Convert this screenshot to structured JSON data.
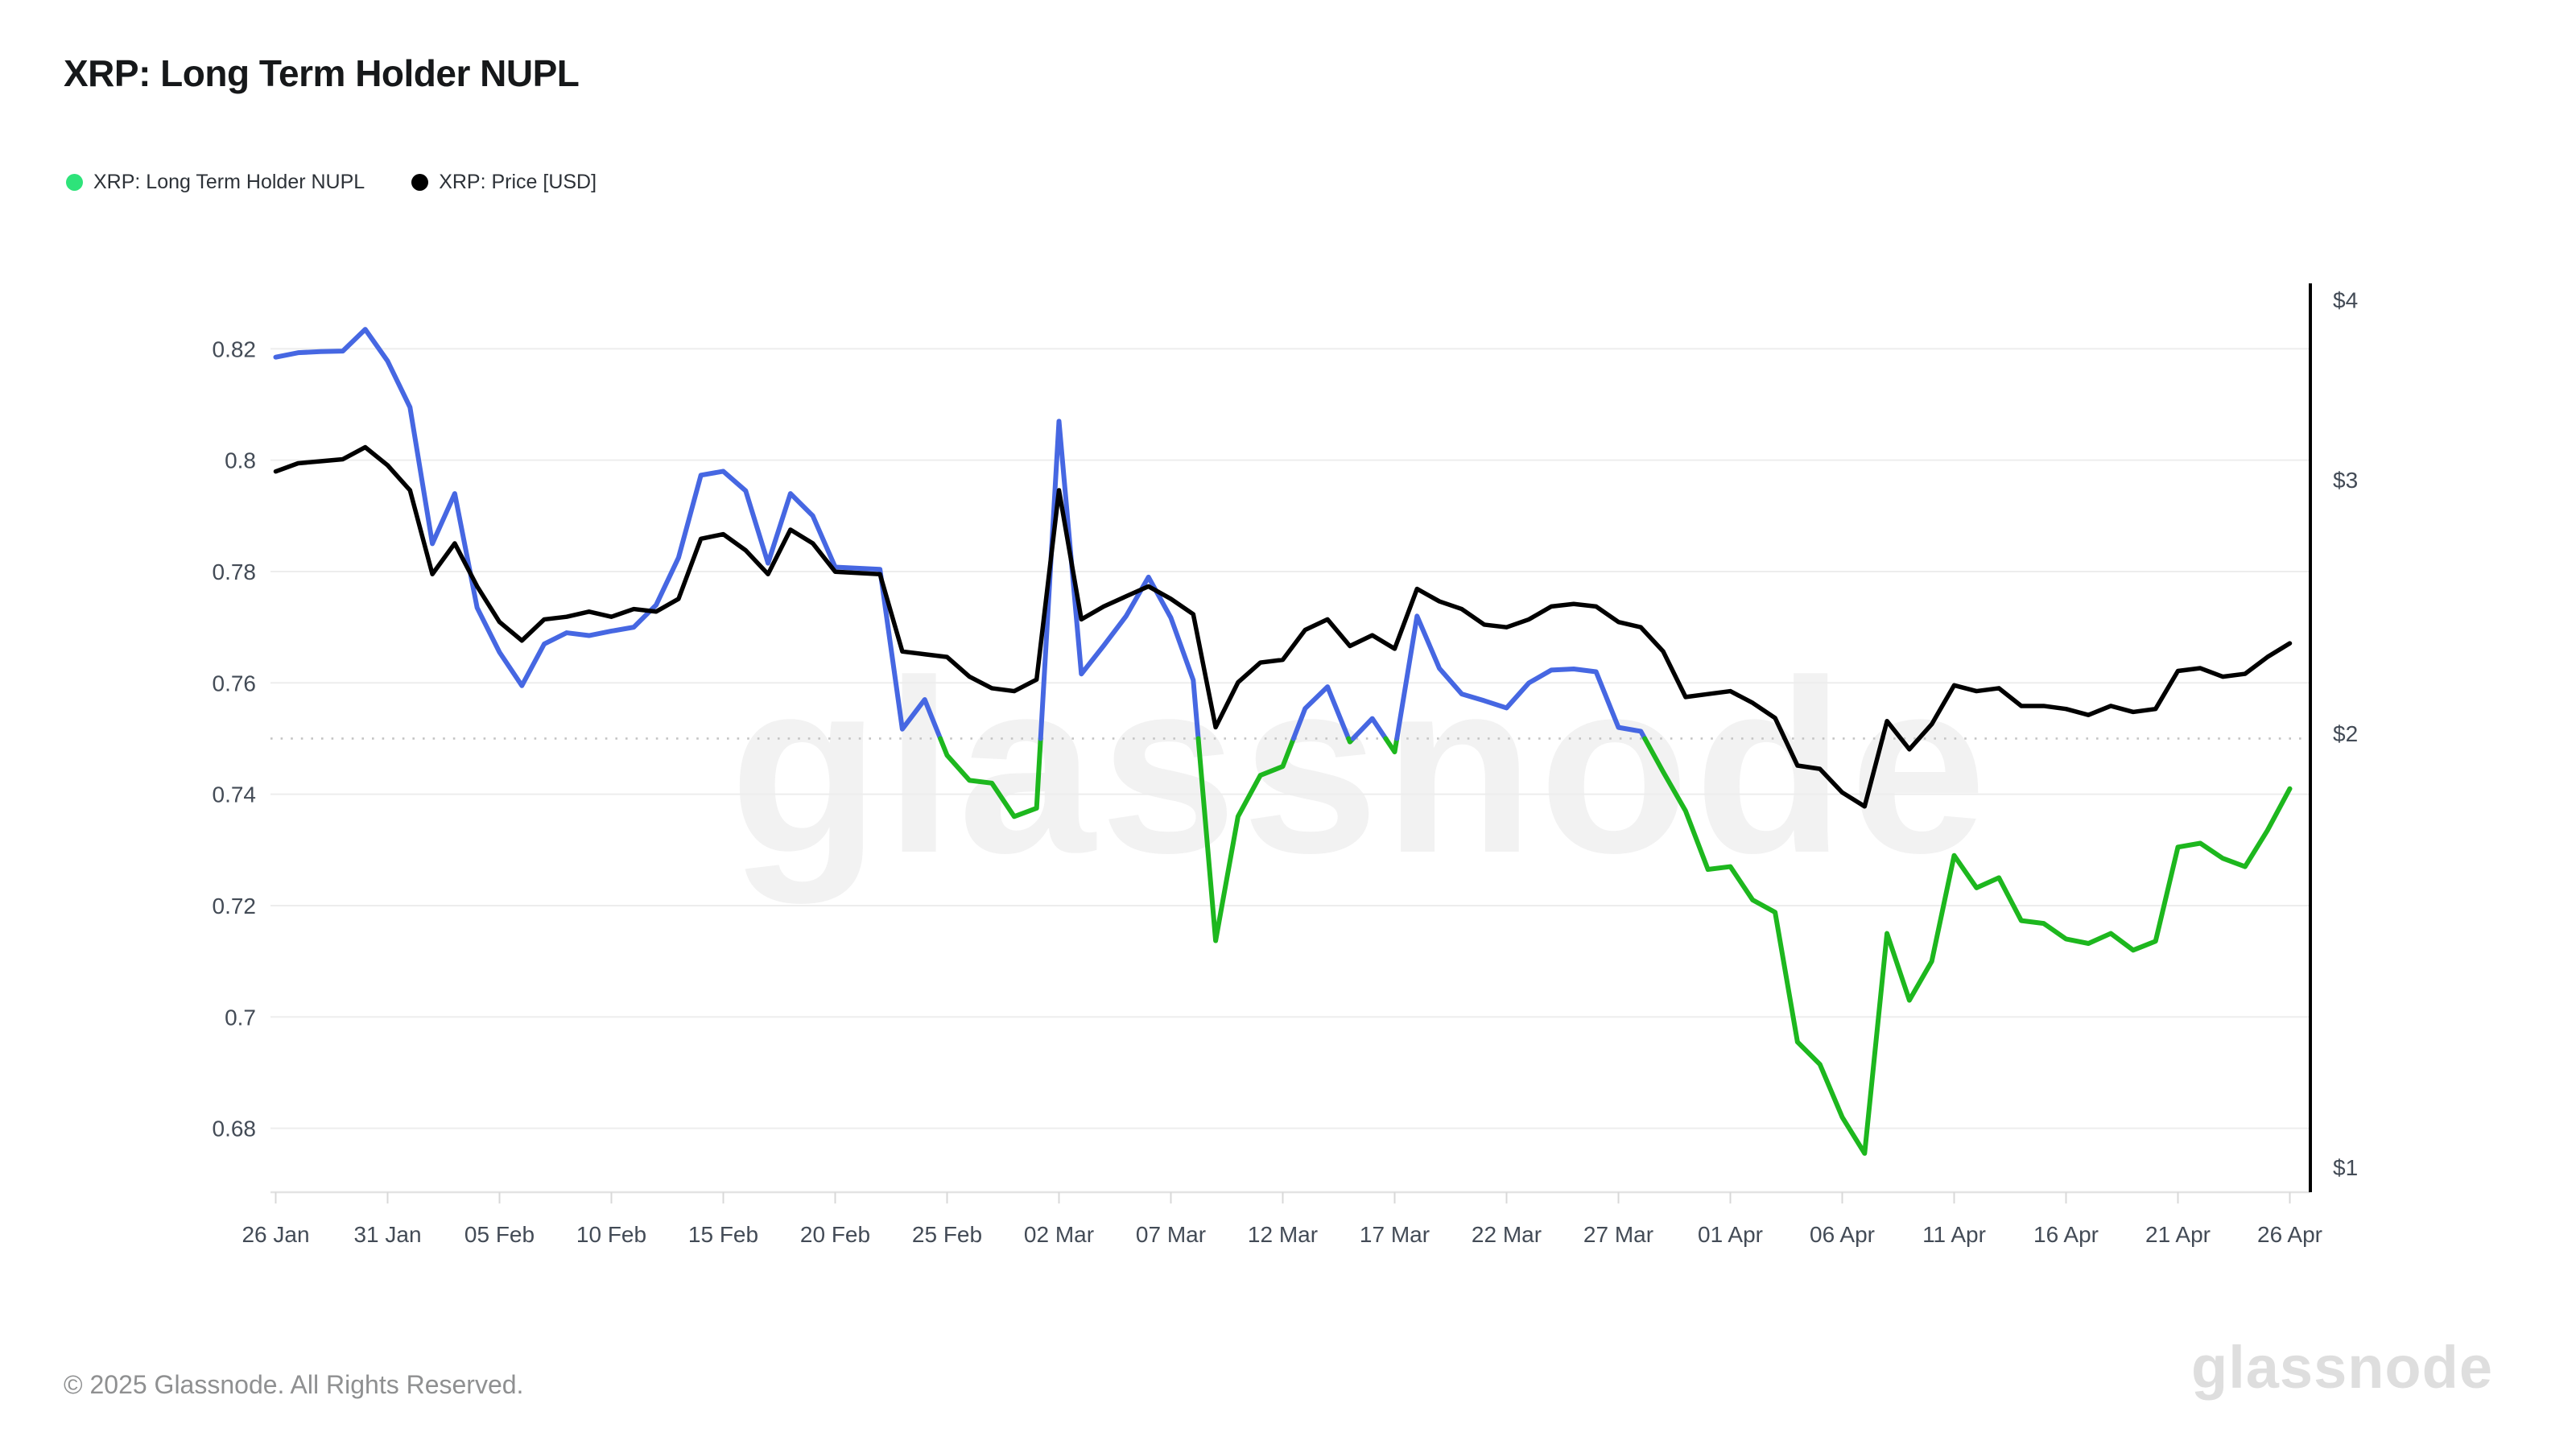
{
  "header": {
    "title": "XRP: Long Term Holder NUPL"
  },
  "legend": {
    "items": [
      {
        "label": "XRP: Long Term Holder NUPL",
        "dot_color": "#2ee37a"
      },
      {
        "label": "XRP: Price [USD]",
        "dot_color": "#000000"
      }
    ]
  },
  "watermark": {
    "text": "glassnode"
  },
  "footer": {
    "copyright": "© 2025 Glassnode. All Rights Reserved.",
    "logo_text": "glassnode"
  },
  "chart_data": {
    "type": "line",
    "title": "XRP: Long Term Holder NUPL",
    "x_tick_labels": [
      "26 Jan",
      "31 Jan",
      "05 Feb",
      "10 Feb",
      "15 Feb",
      "20 Feb",
      "25 Feb",
      "02 Mar",
      "07 Mar",
      "12 Mar",
      "17 Mar",
      "22 Mar",
      "27 Mar",
      "01 Apr",
      "06 Apr",
      "11 Apr",
      "16 Apr",
      "21 Apr",
      "26 Apr"
    ],
    "x_tick_interval_days": 5,
    "dates": [
      "2025-01-26",
      "2025-01-27",
      "2025-01-28",
      "2025-01-29",
      "2025-01-30",
      "2025-01-31",
      "2025-02-01",
      "2025-02-02",
      "2025-02-03",
      "2025-02-04",
      "2025-02-05",
      "2025-02-06",
      "2025-02-07",
      "2025-02-08",
      "2025-02-09",
      "2025-02-10",
      "2025-02-11",
      "2025-02-12",
      "2025-02-13",
      "2025-02-14",
      "2025-02-15",
      "2025-02-16",
      "2025-02-17",
      "2025-02-18",
      "2025-02-19",
      "2025-02-20",
      "2025-02-21",
      "2025-02-22",
      "2025-02-23",
      "2025-02-24",
      "2025-02-25",
      "2025-02-26",
      "2025-02-27",
      "2025-02-28",
      "2025-03-01",
      "2025-03-02",
      "2025-03-03",
      "2025-03-04",
      "2025-03-05",
      "2025-03-06",
      "2025-03-07",
      "2025-03-08",
      "2025-03-09",
      "2025-03-10",
      "2025-03-11",
      "2025-03-12",
      "2025-03-13",
      "2025-03-14",
      "2025-03-15",
      "2025-03-16",
      "2025-03-17",
      "2025-03-18",
      "2025-03-19",
      "2025-03-20",
      "2025-03-21",
      "2025-03-22",
      "2025-03-23",
      "2025-03-24",
      "2025-03-25",
      "2025-03-26",
      "2025-03-27",
      "2025-03-28",
      "2025-03-29",
      "2025-03-30",
      "2025-03-31",
      "2025-04-01",
      "2025-04-02",
      "2025-04-03",
      "2025-04-04",
      "2025-04-05",
      "2025-04-06",
      "2025-04-07",
      "2025-04-08",
      "2025-04-09",
      "2025-04-10",
      "2025-04-11",
      "2025-04-12",
      "2025-04-13",
      "2025-04-14",
      "2025-04-15",
      "2025-04-16",
      "2025-04-17",
      "2025-04-18",
      "2025-04-19",
      "2025-04-20",
      "2025-04-21",
      "2025-04-22",
      "2025-04-23",
      "2025-04-24",
      "2025-04-25",
      "2025-04-26"
    ],
    "series": [
      {
        "name": "XRP: Long Term Holder NUPL",
        "axis": "left",
        "color_rule": "blue when value >= 0.75, green when value < 0.75",
        "values": [
          0.8185,
          0.8193,
          0.8195,
          0.8196,
          0.8235,
          0.8178,
          0.8095,
          0.785,
          0.794,
          0.7735,
          0.7655,
          0.7595,
          0.767,
          0.769,
          0.7685,
          0.7693,
          0.77,
          0.774,
          0.7825,
          0.7973,
          0.798,
          0.7945,
          0.7815,
          0.794,
          0.79,
          0.7808,
          0.7806,
          0.7804,
          0.7517,
          0.757,
          0.747,
          0.7425,
          0.742,
          0.736,
          0.7375,
          0.807,
          0.7616,
          0.7667,
          0.772,
          0.779,
          0.7717,
          0.7605,
          0.7137,
          0.736,
          0.7434,
          0.745,
          0.7554,
          0.7593,
          0.7494,
          0.7536,
          0.7476,
          0.772,
          0.7626,
          0.758,
          0.7568,
          0.7555,
          0.76,
          0.7623,
          0.7625,
          0.762,
          0.752,
          0.7513,
          0.744,
          0.737,
          0.7265,
          0.727,
          0.721,
          0.7188,
          0.6955,
          0.6915,
          0.682,
          0.6755,
          0.715,
          0.703,
          0.71,
          0.729,
          0.7232,
          0.725,
          0.7173,
          0.7168,
          0.714,
          0.7132,
          0.715,
          0.712,
          0.7136,
          0.7305,
          0.7312,
          0.7285,
          0.727,
          0.7335,
          0.741
        ]
      },
      {
        "name": "XRP: Price [USD]",
        "axis": "right",
        "color": "#000000",
        "values": [
          3.04,
          3.08,
          3.09,
          3.1,
          3.16,
          3.07,
          2.95,
          2.58,
          2.71,
          2.53,
          2.39,
          2.32,
          2.4,
          2.41,
          2.43,
          2.41,
          2.44,
          2.43,
          2.48,
          2.73,
          2.75,
          2.68,
          2.58,
          2.77,
          2.71,
          2.59,
          2.585,
          2.58,
          2.28,
          2.27,
          2.26,
          2.19,
          2.15,
          2.14,
          2.18,
          2.95,
          2.4,
          2.45,
          2.49,
          2.53,
          2.48,
          2.42,
          2.02,
          2.17,
          2.24,
          2.25,
          2.36,
          2.4,
          2.3,
          2.34,
          2.29,
          2.52,
          2.47,
          2.44,
          2.38,
          2.37,
          2.4,
          2.45,
          2.46,
          2.45,
          2.39,
          2.37,
          2.28,
          2.12,
          2.13,
          2.14,
          2.1,
          2.05,
          1.9,
          1.89,
          1.82,
          1.78,
          2.04,
          1.95,
          2.03,
          2.16,
          2.14,
          2.15,
          2.09,
          2.09,
          2.08,
          2.06,
          2.09,
          2.07,
          2.08,
          2.21,
          2.22,
          2.19,
          2.2,
          2.26,
          2.31
        ]
      }
    ],
    "y_axis_left": {
      "tick_values": [
        0.82,
        0.8,
        0.78,
        0.76,
        0.74,
        0.72,
        0.7,
        0.68
      ],
      "tick_labels": [
        "0.82",
        "0.8",
        "0.78",
        "0.76",
        "0.74",
        "0.72",
        "0.7",
        "0.68"
      ],
      "grid": true
    },
    "y_axis_right": {
      "tick_values": [
        4,
        3,
        2,
        1
      ],
      "tick_labels": [
        "$4",
        "$3",
        "$2",
        "$1"
      ],
      "scale": "log",
      "grid": false
    },
    "threshold": {
      "value": 0.75,
      "style": "dotted"
    },
    "legend_position": "top-left",
    "colors": {
      "nupl_above_0.75": "#4667e2",
      "nupl_below_0.75": "#1db71e",
      "price": "#000000",
      "legend_nupl_dot": "#2ee37a",
      "grid": "#ededed",
      "threshold_dotted": "#c4c4c4",
      "axis_labels": "#434b56",
      "right_axis_line": "#000000"
    }
  }
}
